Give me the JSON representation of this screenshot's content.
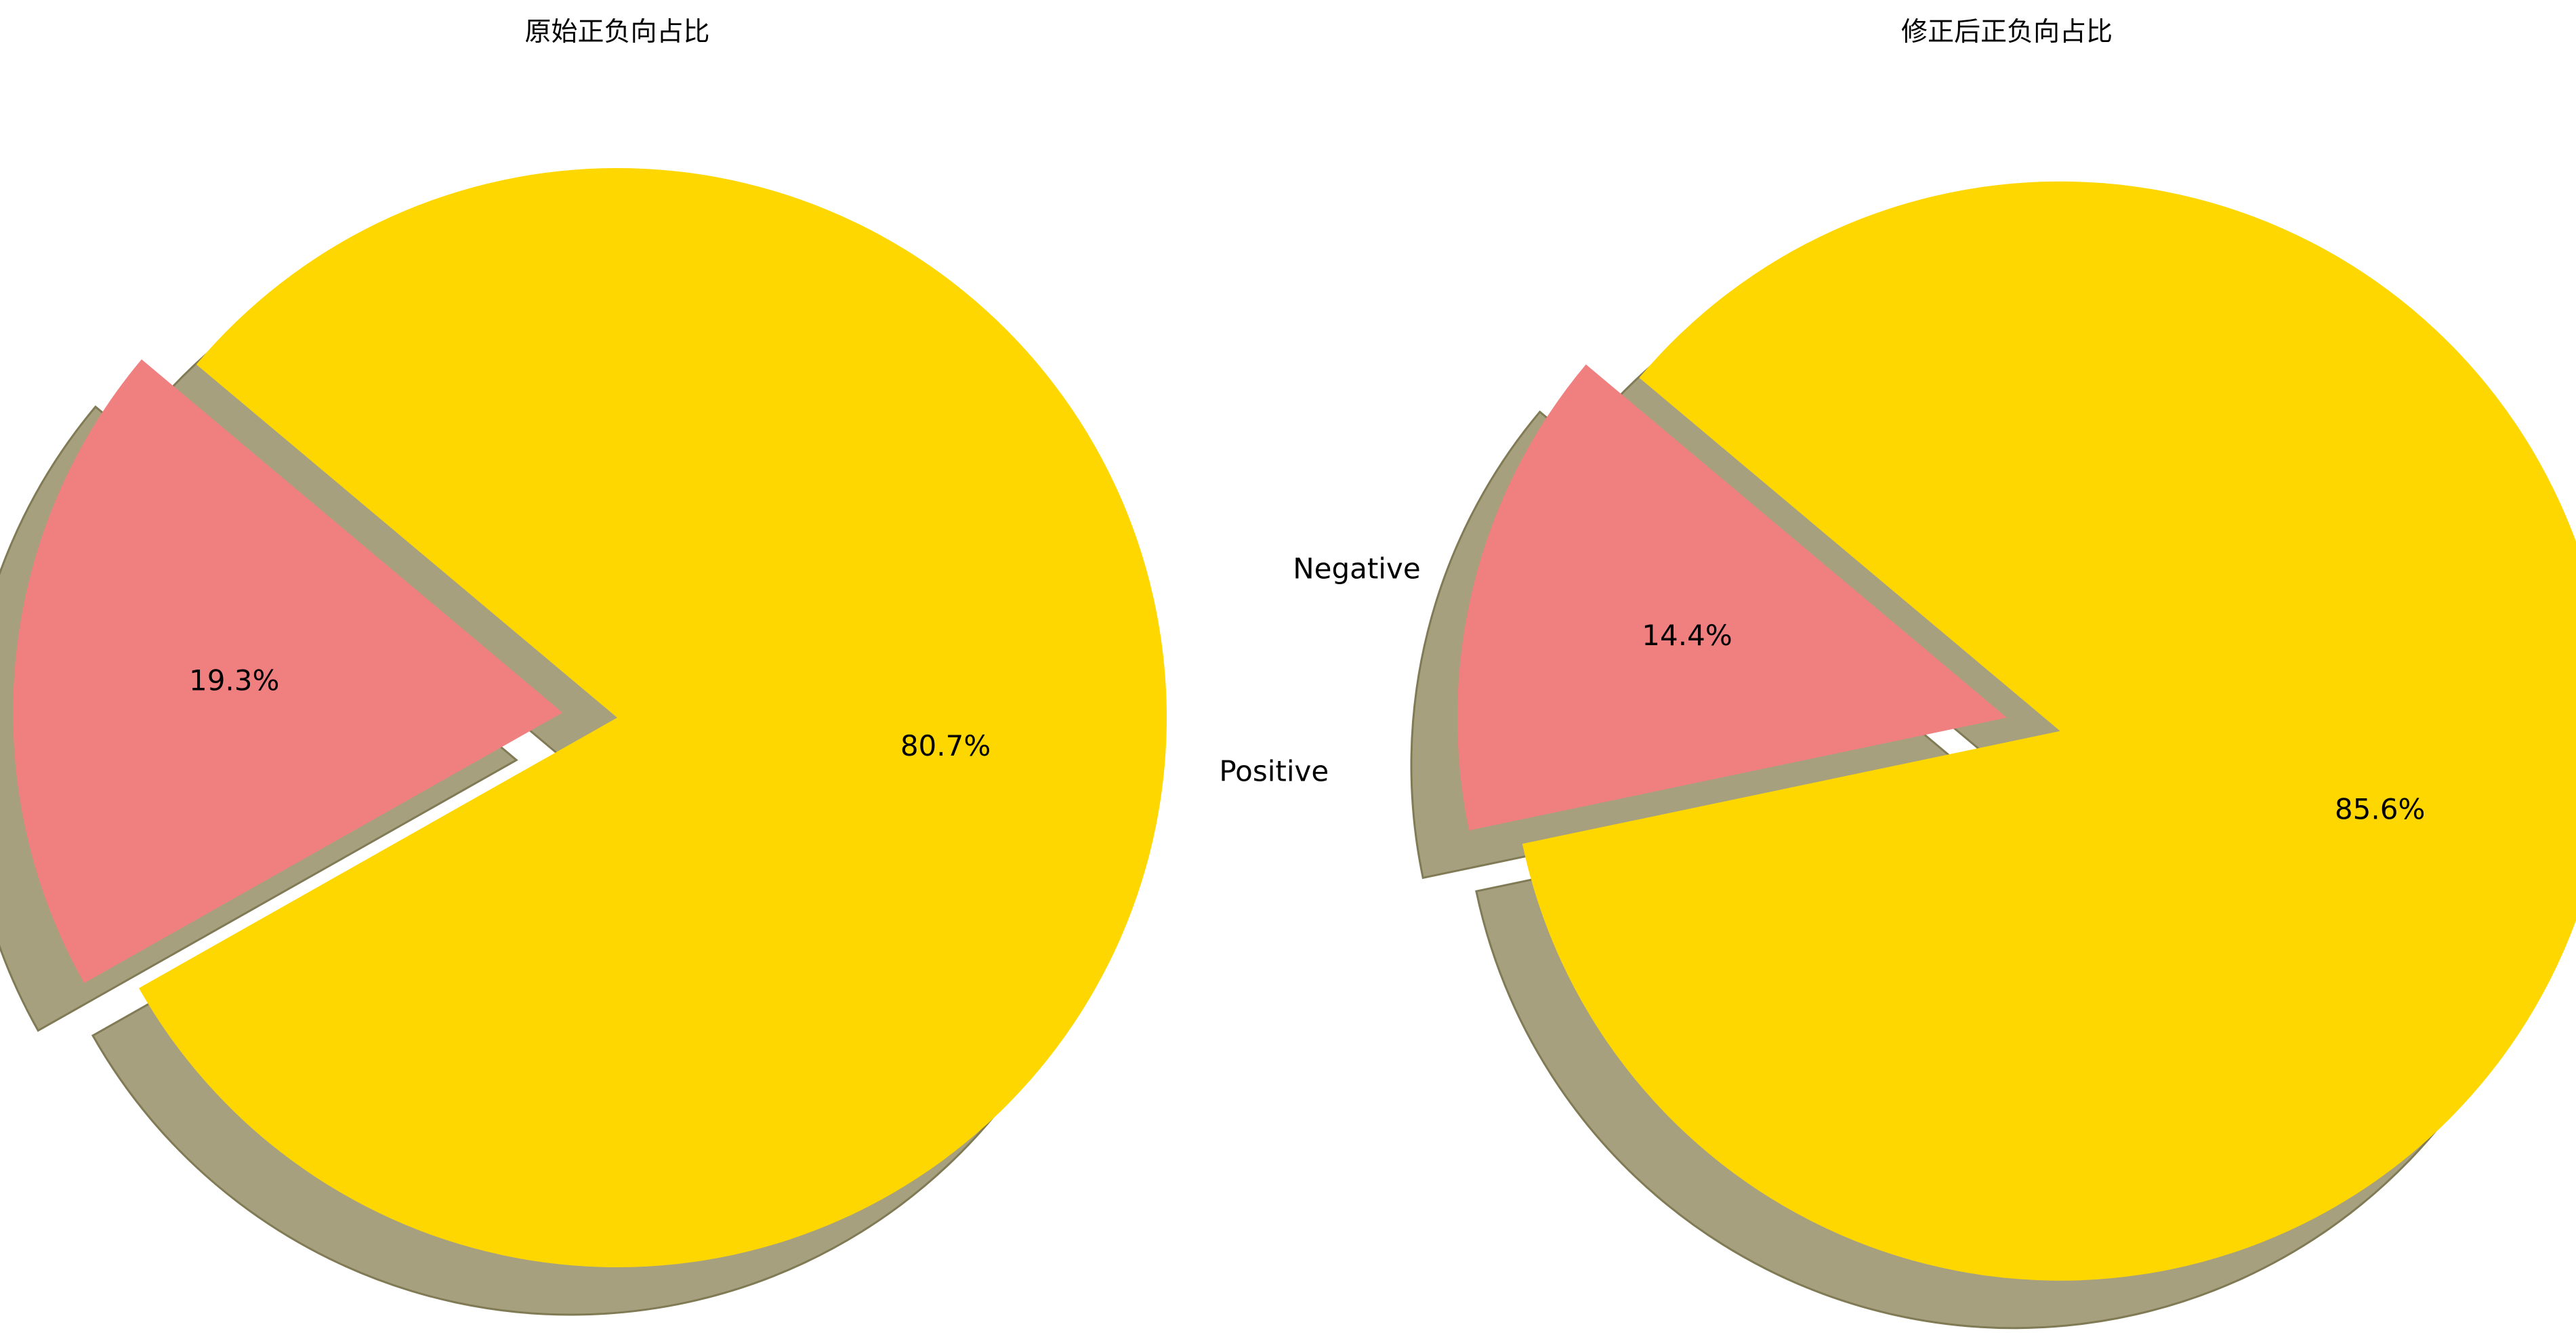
{
  "chart_data": [
    {
      "type": "pie",
      "title": "原始正负向占比",
      "slices": [
        {
          "label": "Negative",
          "value": 19.3,
          "pct_label": "19.3%",
          "color": "#f08080"
        },
        {
          "label": "Positive",
          "value": 80.7,
          "pct_label": "80.7%",
          "color": "#ffd700"
        }
      ],
      "start_angle_deg": 140,
      "explode": [
        0.1,
        0
      ],
      "shadow": true
    },
    {
      "type": "pie",
      "title": "修正后正负向占比",
      "slices": [
        {
          "label": "Negative",
          "value": 14.4,
          "pct_label": "14.4%",
          "color": "#f08080"
        },
        {
          "label": "Positive",
          "value": 85.6,
          "pct_label": "85.6%",
          "color": "#ffd700"
        }
      ],
      "start_angle_deg": 140,
      "explode": [
        0,
        0.1
      ],
      "shadow": true
    }
  ]
}
